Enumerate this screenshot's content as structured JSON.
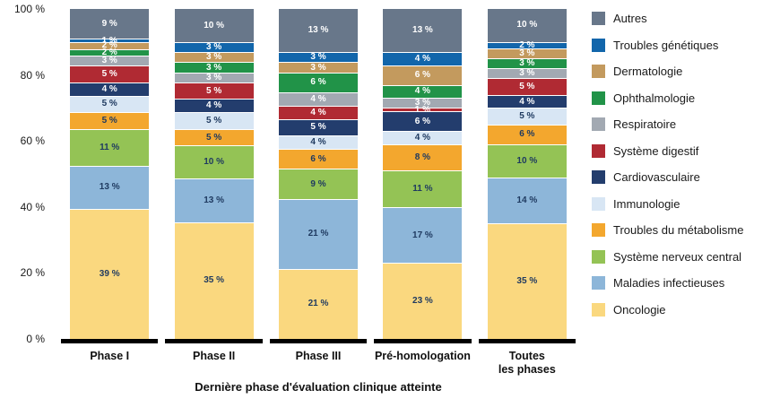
{
  "background": "#ffffff",
  "chart_data": {
    "type": "bar",
    "subtype": "stacked-100-percent",
    "title": "",
    "xlabel": "Dernière phase d'évaluation clinique atteinte",
    "ylabel": "",
    "ylim": [
      0,
      100
    ],
    "grid": false,
    "legend_position": "right",
    "y_ticks": [
      "0 %",
      "20 %",
      "40 %",
      "60 %",
      "80 %",
      "100 %"
    ],
    "categories": [
      "Phase I",
      "Phase II",
      "Phase III",
      "Pré-homologation",
      "Toutes\nles phases"
    ],
    "value_suffix": " %",
    "series": [
      {
        "name": "Autres",
        "color": "#68778a",
        "label_color": "#ffffff",
        "values": [
          9,
          10,
          13,
          13,
          10
        ]
      },
      {
        "name": "Troubles génétiques",
        "color": "#1266ab",
        "label_color": "#ffffff",
        "values": [
          1,
          3,
          3,
          4,
          2
        ]
      },
      {
        "name": "Dermatologie",
        "color": "#c39a5e",
        "label_color": "#ffffff",
        "values": [
          2,
          3,
          3,
          6,
          3
        ]
      },
      {
        "name": "Ophthalmologie",
        "color": "#219348",
        "label_color": "#ffffff",
        "values": [
          2,
          3,
          6,
          4,
          3
        ]
      },
      {
        "name": "Respiratoire",
        "color": "#a2a9b2",
        "label_color": "#ffffff",
        "values": [
          3,
          3,
          4,
          3,
          3
        ]
      },
      {
        "name": "Système digestif",
        "color": "#b02a33",
        "label_color": "#ffffff",
        "values": [
          5,
          5,
          4,
          1,
          5
        ]
      },
      {
        "name": "Cardiovasculaire",
        "color": "#233d6d",
        "label_color": "#ffffff",
        "values": [
          4,
          4,
          5,
          6,
          4
        ]
      },
      {
        "name": "Immunologie",
        "color": "#d8e6f4",
        "label_color": "#1f3a60",
        "values": [
          5,
          5,
          4,
          4,
          5
        ]
      },
      {
        "name": "Troubles du métabolisme",
        "color": "#f3a72e",
        "label_color": "#1f3a60",
        "values": [
          5,
          5,
          6,
          8,
          6
        ]
      },
      {
        "name": "Système nerveux central",
        "color": "#94c355",
        "label_color": "#1f3a60",
        "values": [
          11,
          10,
          9,
          11,
          10
        ]
      },
      {
        "name": "Maladies infectieuses",
        "color": "#8db6d9",
        "label_color": "#1f3a60",
        "values": [
          13,
          13,
          21,
          17,
          14
        ]
      },
      {
        "name": "Oncologie",
        "color": "#fad87f",
        "label_color": "#1f3a60",
        "values": [
          39,
          35,
          21,
          23,
          35
        ]
      }
    ]
  }
}
